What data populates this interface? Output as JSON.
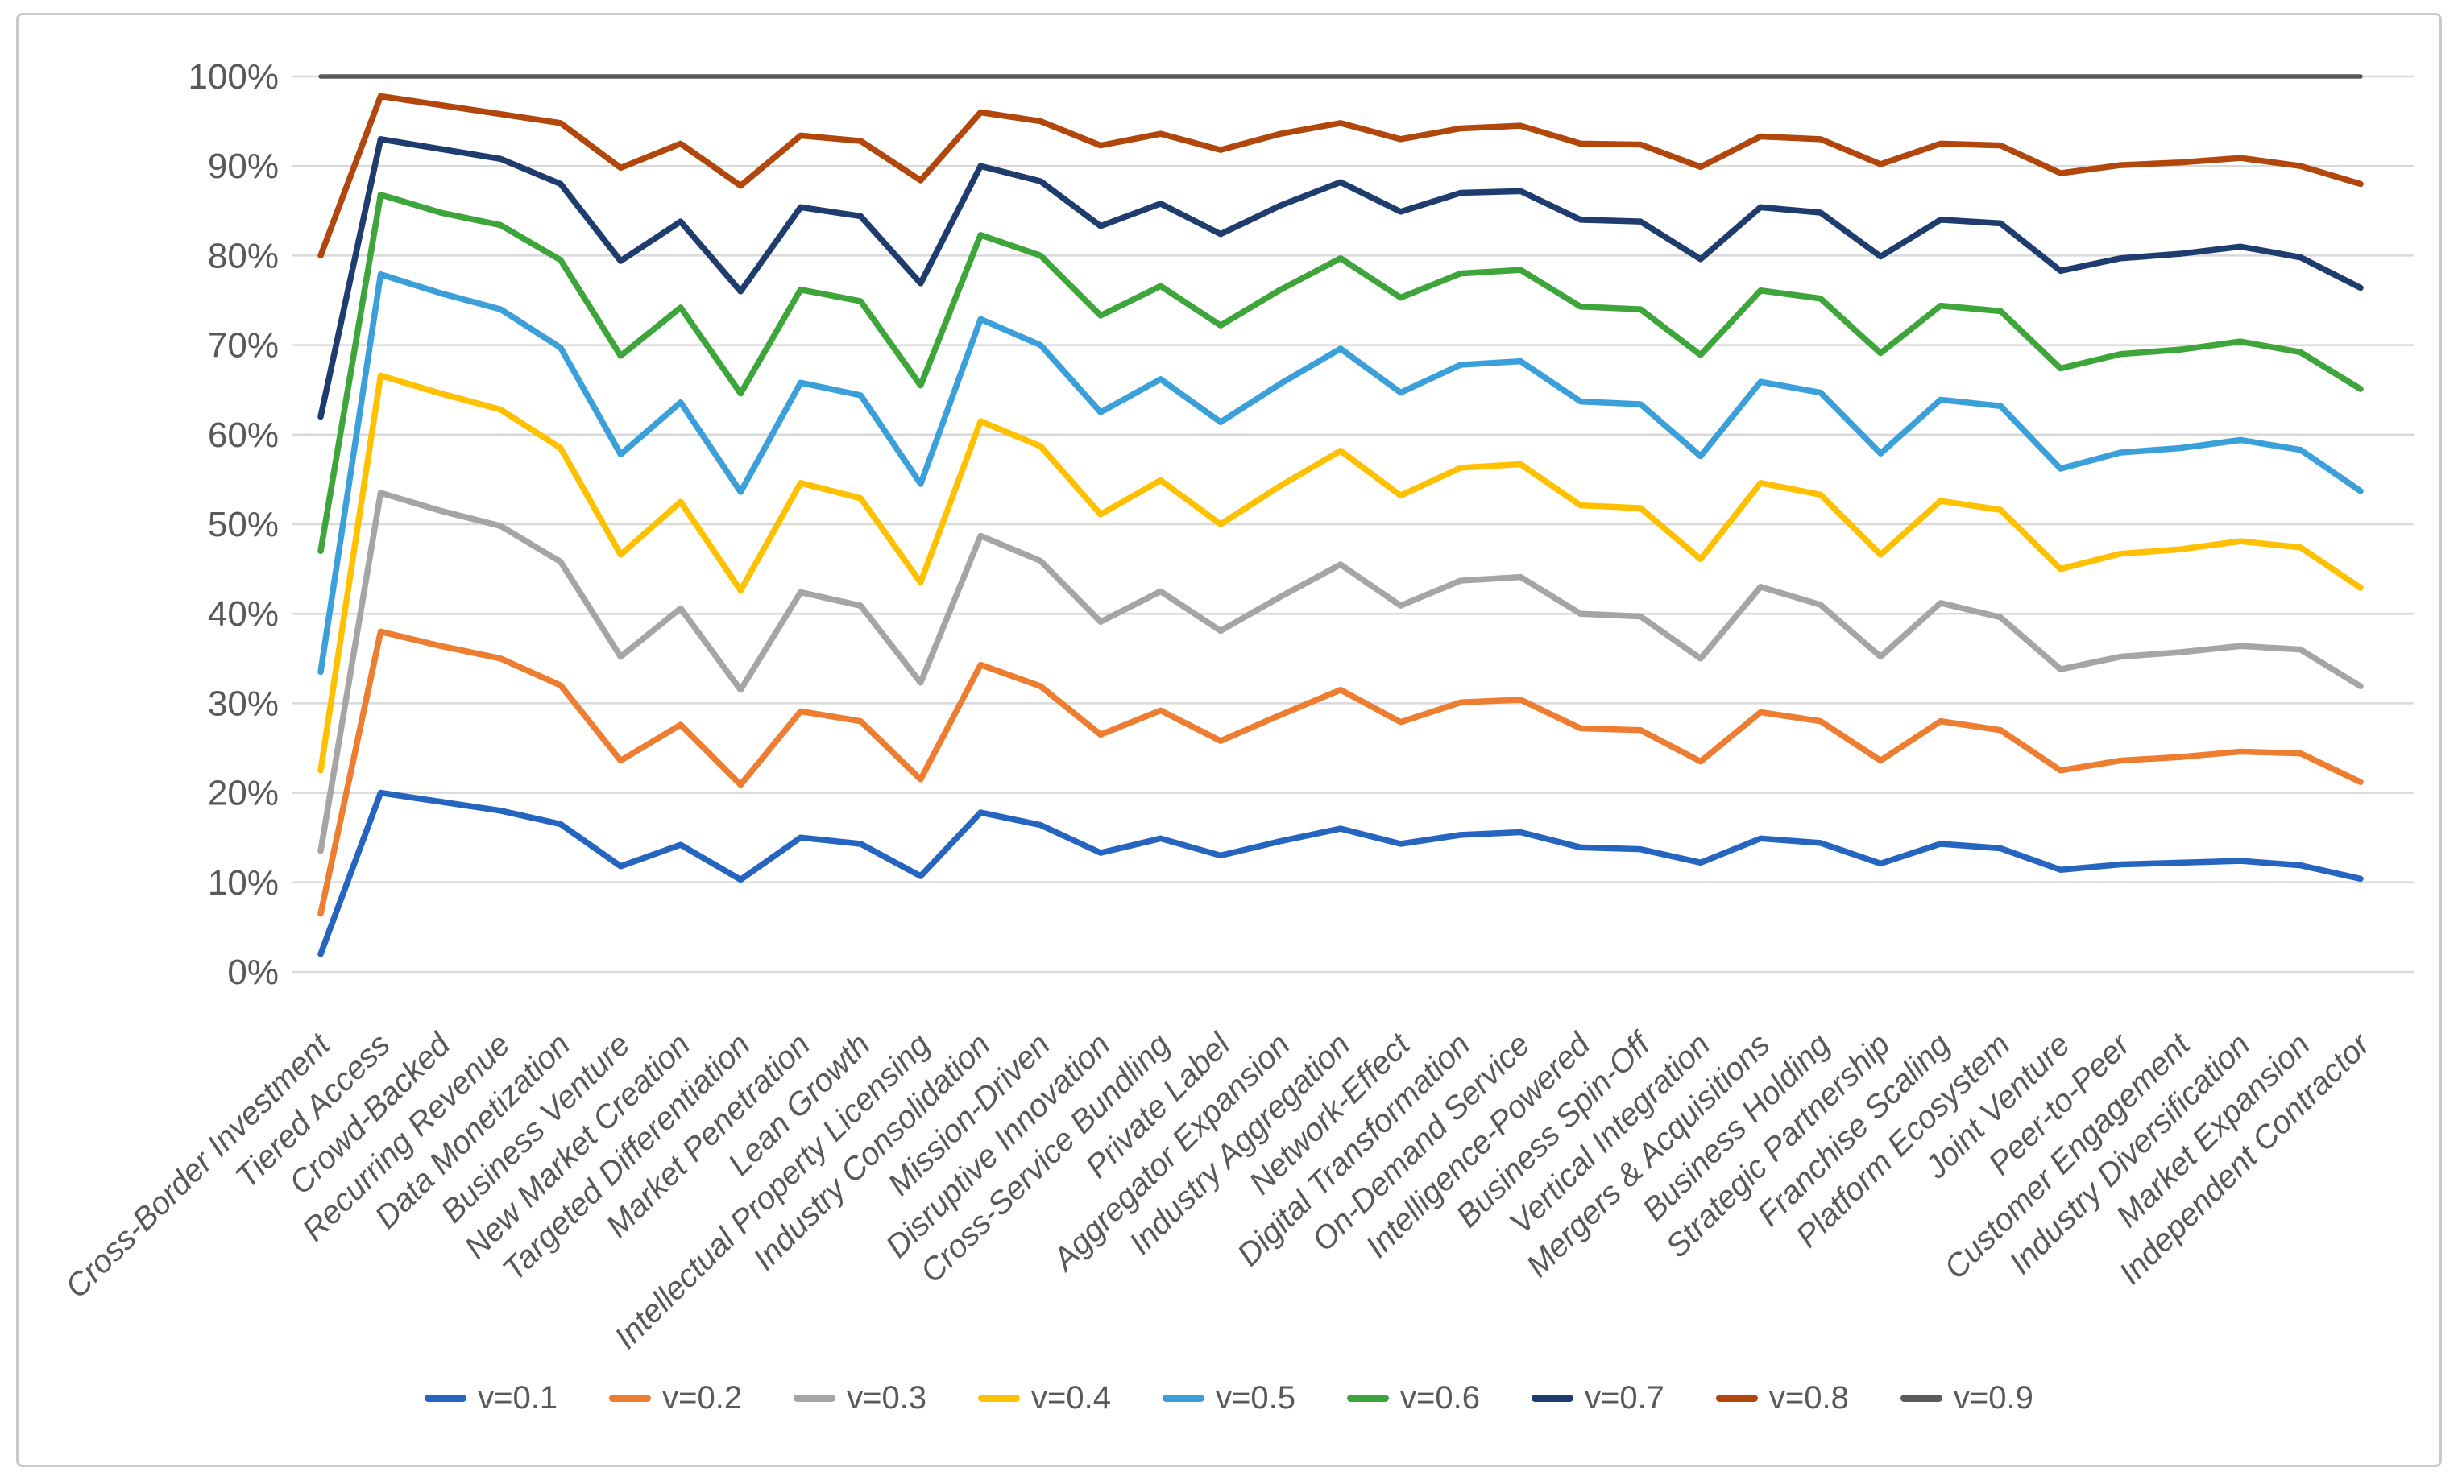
{
  "figure": {
    "type_label": "Excel-style line chart figure",
    "background": "#ffffff",
    "frame_color": "#c9c9c9"
  },
  "chart_data": {
    "type": "line",
    "title": "",
    "xlabel": "",
    "ylabel": "",
    "ylim": [
      0,
      100
    ],
    "grid": true,
    "grid_color": "#d9d9d9",
    "tick_text_color": "#595959",
    "legend_position": "bottom",
    "y_ticks": [
      "0%",
      "10%",
      "20%",
      "30%",
      "40%",
      "50%",
      "60%",
      "70%",
      "80%",
      "90%",
      "100%"
    ],
    "categories": [
      "Cross-Border Investment",
      "Tiered Access",
      "Crowd-Backed",
      "Recurring Revenue",
      "Data Monetization",
      "Business Venture",
      "New Market Creation",
      "Targeted Differentiation",
      "Market Penetration",
      "Lean Growth",
      "Intellectual Property Licensing",
      "Industry Consolidation",
      "Mission-Driven",
      "Disruptive Innovation",
      "Cross-Service Bundling",
      "Private Label",
      "Aggregator Expansion",
      "Industry Aggregation",
      "Network-Effect",
      "Digital Transformation",
      "On-Demand Service",
      "Intelligence-Powered",
      "Business Spin-Off",
      "Vertical Integration",
      "Mergers & Acquisitions",
      "Business Holding",
      "Strategic Partnership",
      "Franchise Scaling",
      "Platform Ecosystem",
      "Joint Venture",
      "Peer-to-Peer",
      "Customer Engagement",
      "Industry Diversification",
      "Market Expansion",
      "Independent Contractor"
    ],
    "series": [
      {
        "name": "v=0.1",
        "color": "#2565C0",
        "values": [
          2.0,
          20.0,
          19.0,
          18.0,
          16.5,
          11.8,
          14.2,
          10.3,
          15.0,
          14.3,
          10.7,
          17.8,
          16.4,
          13.3,
          14.9,
          13.0,
          14.6,
          16.0,
          14.3,
          15.3,
          15.6,
          13.9,
          13.7,
          12.2,
          14.9,
          14.4,
          12.1,
          14.3,
          13.8,
          11.4,
          12.0,
          12.2,
          12.4,
          11.9,
          10.4
        ]
      },
      {
        "name": "v=0.2",
        "color": "#ED7D31",
        "values": [
          6.5,
          38.0,
          36.4,
          35.0,
          32.0,
          23.6,
          27.6,
          20.9,
          29.1,
          28.0,
          21.5,
          34.3,
          31.9,
          26.5,
          29.2,
          25.8,
          28.7,
          31.5,
          27.9,
          30.1,
          30.4,
          27.2,
          27.0,
          23.5,
          29.0,
          28.0,
          23.6,
          28.0,
          27.0,
          22.5,
          23.6,
          24.0,
          24.6,
          24.4,
          21.2
        ]
      },
      {
        "name": "v=0.3",
        "color": "#A5A5A5",
        "values": [
          13.5,
          53.5,
          51.5,
          49.8,
          45.8,
          35.2,
          40.6,
          31.5,
          42.4,
          40.9,
          32.3,
          48.7,
          45.9,
          39.1,
          42.5,
          38.1,
          41.9,
          45.5,
          40.9,
          43.7,
          44.1,
          40.0,
          39.7,
          35.0,
          43.0,
          41.0,
          35.2,
          41.2,
          39.6,
          33.8,
          35.2,
          35.7,
          36.4,
          36.0,
          31.9
        ]
      },
      {
        "name": "v=0.4",
        "color": "#FFC000",
        "values": [
          22.5,
          66.6,
          64.6,
          62.8,
          58.5,
          46.6,
          52.5,
          42.6,
          54.6,
          52.9,
          43.5,
          61.5,
          58.7,
          51.1,
          54.9,
          50.0,
          54.3,
          58.2,
          53.2,
          56.3,
          56.7,
          52.1,
          51.8,
          46.1,
          54.6,
          53.3,
          46.6,
          52.6,
          51.6,
          45.0,
          46.7,
          47.2,
          48.1,
          47.4,
          42.9
        ]
      },
      {
        "name": "v=0.5",
        "color": "#3BA0DA",
        "values": [
          33.5,
          77.9,
          75.8,
          74.0,
          69.7,
          57.8,
          63.6,
          53.6,
          65.8,
          64.4,
          54.5,
          72.9,
          70.0,
          62.5,
          66.2,
          61.4,
          65.7,
          69.6,
          64.7,
          67.8,
          68.2,
          63.7,
          63.4,
          57.6,
          65.9,
          64.7,
          57.9,
          63.9,
          63.2,
          56.2,
          58.0,
          58.5,
          59.4,
          58.3,
          53.7
        ]
      },
      {
        "name": "v=0.6",
        "color": "#3EA53B",
        "values": [
          47.0,
          86.8,
          84.8,
          83.4,
          79.5,
          68.8,
          74.2,
          64.6,
          76.2,
          74.9,
          65.5,
          82.3,
          80.0,
          73.3,
          76.6,
          72.2,
          76.2,
          79.7,
          75.3,
          78.0,
          78.4,
          74.3,
          74.0,
          68.9,
          76.1,
          75.2,
          69.1,
          74.4,
          73.8,
          67.4,
          69.0,
          69.5,
          70.4,
          69.2,
          65.1
        ]
      },
      {
        "name": "v=0.7",
        "color": "#1F3C6E",
        "values": [
          62.0,
          93.0,
          91.9,
          90.8,
          88.0,
          79.4,
          83.8,
          76.0,
          85.4,
          84.4,
          76.9,
          90.0,
          88.3,
          83.3,
          85.8,
          82.4,
          85.6,
          88.2,
          84.9,
          87.0,
          87.2,
          84.0,
          83.8,
          79.6,
          85.4,
          84.8,
          79.9,
          84.0,
          83.6,
          78.3,
          79.7,
          80.2,
          81.0,
          79.8,
          76.4
        ]
      },
      {
        "name": "v=0.8",
        "color": "#B1470C",
        "values": [
          80.0,
          97.8,
          96.8,
          95.8,
          94.8,
          89.8,
          92.5,
          87.8,
          93.4,
          92.8,
          88.4,
          96.0,
          95.0,
          92.3,
          93.6,
          91.8,
          93.6,
          94.8,
          93.0,
          94.2,
          94.5,
          92.5,
          92.4,
          89.9,
          93.3,
          93.0,
          90.2,
          92.5,
          92.3,
          89.2,
          90.1,
          90.4,
          90.9,
          90.0,
          88.0
        ]
      },
      {
        "name": "v=0.9",
        "color": "#5A5A5A",
        "values": [
          100,
          100,
          100,
          100,
          100,
          100,
          100,
          100,
          100,
          100,
          100,
          100,
          100,
          100,
          100,
          100,
          100,
          100,
          100,
          100,
          100,
          100,
          100,
          100,
          100,
          100,
          100,
          100,
          100,
          100,
          100,
          100,
          100,
          100,
          100
        ]
      }
    ]
  }
}
